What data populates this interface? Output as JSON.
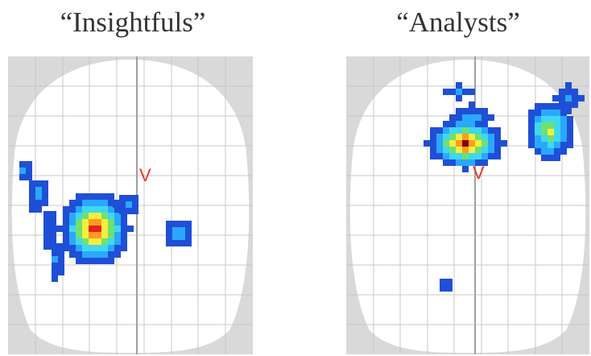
{
  "panels": [
    {
      "title": "“Insightfuls”",
      "marker": "V",
      "colors": {
        "background": "#d9d9d9",
        "brain": "#ffffff",
        "grid": "#c8c8c8",
        "midline": "#a0a0a0",
        "marker": "#e8332a"
      },
      "activation_clusters": [
        {
          "name": "left-temporal-cluster",
          "peak_intensity": 1.0
        },
        {
          "name": "left-frontal-strip",
          "peak_intensity": 0.3
        },
        {
          "name": "right-small-cluster",
          "peak_intensity": 0.35
        }
      ]
    },
    {
      "title": "“Analysts”",
      "marker": "V",
      "colors": {
        "background": "#d9d9d9",
        "brain": "#ffffff",
        "grid": "#c8c8c8",
        "midline": "#a0a0a0",
        "marker": "#e8332a"
      },
      "activation_clusters": [
        {
          "name": "anterior-left-cluster",
          "peak_intensity": 1.0
        },
        {
          "name": "anterior-right-cluster",
          "peak_intensity": 0.7
        },
        {
          "name": "posterior-small-cluster",
          "peak_intensity": 0.3
        }
      ]
    }
  ]
}
